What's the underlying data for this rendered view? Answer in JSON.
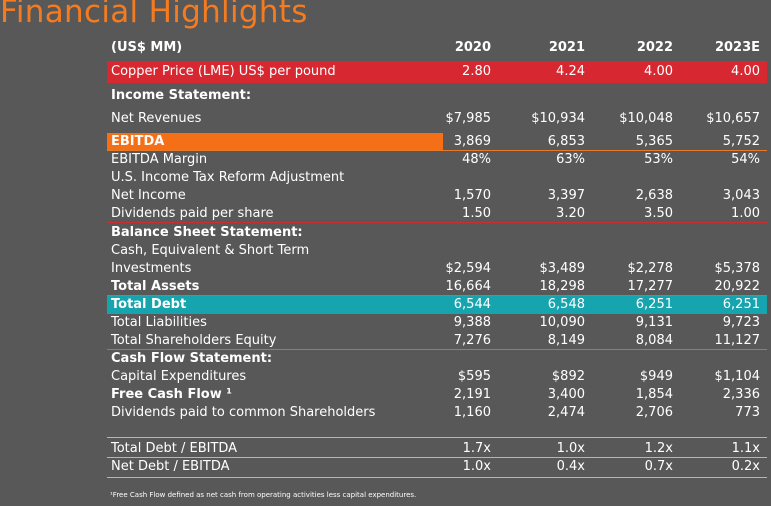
{
  "title": "Financial Highlights",
  "header": {
    "label": "(US$ MM)",
    "years": [
      "2020",
      "2021",
      "2022",
      "2023E"
    ]
  },
  "copper": {
    "label": "Copper Price (LME) US$ per pound",
    "values": [
      "2.80",
      "4.24",
      "4.00",
      "4.00"
    ]
  },
  "income_heading": "Income Statement:",
  "net_revenues": {
    "label": "Net Revenues",
    "values": [
      "$7,985",
      "$10,934",
      "$10,048",
      "$10,657"
    ]
  },
  "ebitda": {
    "label": "EBITDA",
    "values": [
      "3,869",
      "6,853",
      "5,365",
      "5,752"
    ]
  },
  "ebitda_margin": {
    "label": "EBITDA Margin",
    "values": [
      "48%",
      "63%",
      "53%",
      "54%"
    ]
  },
  "tax_reform": {
    "label": "U.S. Income Tax Reform Adjustment"
  },
  "net_income": {
    "label": "Net Income",
    "values": [
      "1,570",
      "3,397",
      "2,638",
      "3,043"
    ]
  },
  "dividends_per_share": {
    "label": "Dividends paid per share",
    "values": [
      "1.50",
      "3.20",
      "3.50",
      "1.00"
    ]
  },
  "balance_heading": "Balance Sheet Statement:",
  "cash_line1": "Cash, Equivalent & Short Term",
  "cash": {
    "label": "Investments",
    "values": [
      "$2,594",
      "$3,489",
      "$2,278",
      "$5,378"
    ]
  },
  "total_assets": {
    "label": "Total Assets",
    "values": [
      "16,664",
      "18,298",
      "17,277",
      "20,922"
    ]
  },
  "total_debt": {
    "label": "Total Debt",
    "values": [
      "6,544",
      "6,548",
      "6,251",
      "6,251"
    ]
  },
  "total_liabilities": {
    "label": "Total Liabilities",
    "values": [
      "9,388",
      "10,090",
      "9,131",
      "9,723"
    ]
  },
  "equity": {
    "label": "Total Shareholders Equity",
    "values": [
      "7,276",
      "8,149",
      "8,084",
      "11,127"
    ]
  },
  "cashflow_heading": "Cash Flow Statement:",
  "capex": {
    "label": "Capital Expenditures",
    "values": [
      "$595",
      "$892",
      "$949",
      "$1,104"
    ]
  },
  "fcf": {
    "label": "Free Cash Flow ¹",
    "values": [
      "2,191",
      "3,400",
      "1,854",
      "2,336"
    ]
  },
  "dividends_common": {
    "label": "Dividends paid to common Shareholders",
    "values": [
      "1,160",
      "2,474",
      "2,706",
      "773"
    ]
  },
  "debt_ebitda": {
    "label": "Total Debt / EBITDA",
    "values": [
      "1.7x",
      "1.0x",
      "1.2x",
      "1.1x"
    ]
  },
  "net_debt_ebitda": {
    "label": "Net Debt / EBITDA",
    "values": [
      "1.0x",
      "0.4x",
      "0.7x",
      "0.2x"
    ]
  },
  "footnote": "¹Free Cash Flow defined as net cash from operating activities less capital expenditures.",
  "colors": {
    "title": "#f57b20",
    "copper_band": "#d72731",
    "ebitda_band": "#f46f16",
    "debt_band": "#16a4ae",
    "rule": "#c9c23b",
    "background": "#585858"
  }
}
